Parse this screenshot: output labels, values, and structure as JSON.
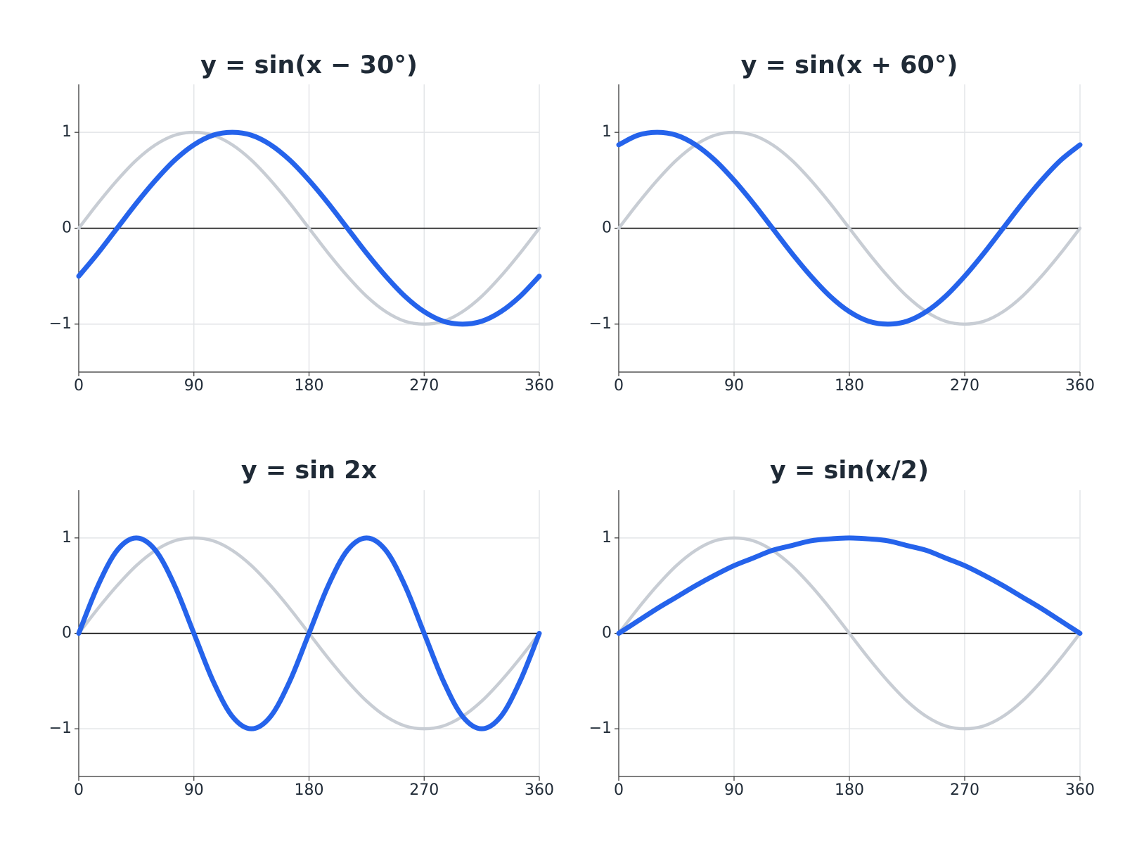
{
  "chart_data": [
    {
      "type": "line",
      "title": "y = sin(x − 30°)",
      "x": [
        0,
        15,
        30,
        45,
        60,
        75,
        90,
        105,
        120,
        135,
        150,
        165,
        180,
        195,
        210,
        225,
        240,
        255,
        270,
        285,
        300,
        315,
        330,
        345,
        360
      ],
      "series": [
        {
          "color": "#c8cdd4",
          "values": [
            0,
            0.26,
            0.5,
            0.71,
            0.87,
            0.97,
            1,
            0.97,
            0.87,
            0.71,
            0.5,
            0.26,
            0,
            -0.26,
            -0.5,
            -0.71,
            -0.87,
            -0.97,
            -1,
            -0.97,
            -0.87,
            -0.71,
            -0.5,
            -0.26,
            0
          ]
        },
        {
          "color": "#2563eb",
          "values": [
            -0.5,
            -0.26,
            0,
            0.26,
            0.5,
            0.71,
            0.87,
            0.97,
            1,
            0.97,
            0.87,
            0.71,
            0.5,
            0.26,
            0,
            -0.26,
            -0.5,
            -0.71,
            -0.87,
            -0.97,
            -1,
            -0.97,
            -0.87,
            -0.71,
            -0.5
          ]
        }
      ],
      "xlim": [
        0,
        360
      ],
      "xticks": [
        0,
        90,
        180,
        270,
        360
      ],
      "ylim": [
        -1.5,
        1.5
      ],
      "yticks": [
        {
          "value": -1,
          "label": "−1"
        },
        0,
        1
      ],
      "grid": true
    },
    {
      "type": "line",
      "title": "y = sin(x + 60°)",
      "x": [
        0,
        15,
        30,
        45,
        60,
        75,
        90,
        105,
        120,
        135,
        150,
        165,
        180,
        195,
        210,
        225,
        240,
        255,
        270,
        285,
        300,
        315,
        330,
        345,
        360
      ],
      "series": [
        {
          "color": "#c8cdd4",
          "values": [
            0,
            0.26,
            0.5,
            0.71,
            0.87,
            0.97,
            1,
            0.97,
            0.87,
            0.71,
            0.5,
            0.26,
            0,
            -0.26,
            -0.5,
            -0.71,
            -0.87,
            -0.97,
            -1,
            -0.97,
            -0.87,
            -0.71,
            -0.5,
            -0.26,
            0
          ]
        },
        {
          "color": "#2563eb",
          "values": [
            0.87,
            0.97,
            1,
            0.97,
            0.87,
            0.71,
            0.5,
            0.26,
            0,
            -0.26,
            -0.5,
            -0.71,
            -0.87,
            -0.97,
            -1,
            -0.97,
            -0.87,
            -0.71,
            -0.5,
            -0.26,
            0,
            0.26,
            0.5,
            0.71,
            0.87
          ]
        }
      ],
      "xlim": [
        0,
        360
      ],
      "xticks": [
        0,
        90,
        180,
        270,
        360
      ],
      "ylim": [
        -1.5,
        1.5
      ],
      "yticks": [
        {
          "value": -1,
          "label": "−1"
        },
        0,
        1
      ],
      "grid": true
    },
    {
      "type": "line",
      "title": "y = sin 2x",
      "x": [
        0,
        15,
        30,
        45,
        60,
        75,
        90,
        105,
        120,
        135,
        150,
        165,
        180,
        195,
        210,
        225,
        240,
        255,
        270,
        285,
        300,
        315,
        330,
        345,
        360
      ],
      "series": [
        {
          "color": "#c8cdd4",
          "values": [
            0,
            0.26,
            0.5,
            0.71,
            0.87,
            0.97,
            1,
            0.97,
            0.87,
            0.71,
            0.5,
            0.26,
            0,
            -0.26,
            -0.5,
            -0.71,
            -0.87,
            -0.97,
            -1,
            -0.97,
            -0.87,
            -0.71,
            -0.5,
            -0.26,
            0
          ]
        },
        {
          "color": "#2563eb",
          "values": [
            0,
            0.5,
            0.87,
            1,
            0.87,
            0.5,
            0,
            -0.5,
            -0.87,
            -1,
            -0.87,
            -0.5,
            0,
            0.5,
            0.87,
            1,
            0.87,
            0.5,
            0,
            -0.5,
            -0.87,
            -1,
            -0.87,
            -0.5,
            0
          ]
        }
      ],
      "xlim": [
        0,
        360
      ],
      "xticks": [
        0,
        90,
        180,
        270,
        360
      ],
      "ylim": [
        -1.5,
        1.5
      ],
      "yticks": [
        {
          "value": -1,
          "label": "−1"
        },
        0,
        1
      ],
      "grid": true
    },
    {
      "type": "line",
      "title": "y = sin(x/2)",
      "x": [
        0,
        15,
        30,
        45,
        60,
        75,
        90,
        105,
        120,
        135,
        150,
        165,
        180,
        195,
        210,
        225,
        240,
        255,
        270,
        285,
        300,
        315,
        330,
        345,
        360
      ],
      "series": [
        {
          "color": "#c8cdd4",
          "values": [
            0,
            0.26,
            0.5,
            0.71,
            0.87,
            0.97,
            1,
            0.97,
            0.87,
            0.71,
            0.5,
            0.26,
            0,
            -0.26,
            -0.5,
            -0.71,
            -0.87,
            -0.97,
            -1,
            -0.97,
            -0.87,
            -0.71,
            -0.5,
            -0.26,
            0
          ]
        },
        {
          "color": "#2563eb",
          "values": [
            0,
            0.13,
            0.26,
            0.38,
            0.5,
            0.61,
            0.71,
            0.79,
            0.87,
            0.92,
            0.97,
            0.99,
            1,
            0.99,
            0.97,
            0.92,
            0.87,
            0.79,
            0.71,
            0.61,
            0.5,
            0.38,
            0.26,
            0.13,
            0
          ]
        }
      ],
      "xlim": [
        0,
        360
      ],
      "xticks": [
        0,
        90,
        180,
        270,
        360
      ],
      "ylim": [
        -1.5,
        1.5
      ],
      "yticks": [
        {
          "value": -1,
          "label": "−1"
        },
        0,
        1
      ],
      "grid": true
    }
  ]
}
